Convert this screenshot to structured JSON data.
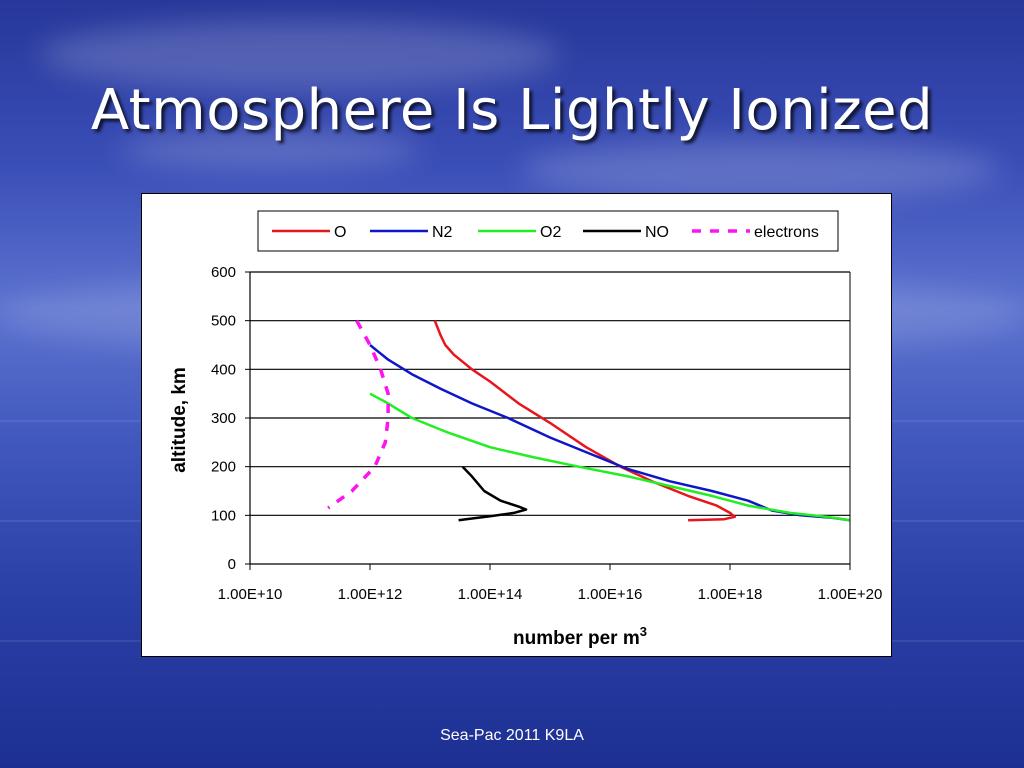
{
  "slide": {
    "title": "Atmosphere Is Lightly Ionized",
    "footer": "Sea-Pac 2011 K9LA"
  },
  "chart_data": {
    "type": "line",
    "x_scale": "log",
    "xlabel": "number per m",
    "xlabel_superscript": "3",
    "ylabel": "altitude, km",
    "xlim": [
      "1.00E+10",
      "1.00E+20"
    ],
    "ylim": [
      0,
      600
    ],
    "x_ticks": [
      "1.00E+10",
      "1.00E+12",
      "1.00E+14",
      "1.00E+16",
      "1.00E+18",
      "1.00E+20"
    ],
    "y_ticks": [
      "0",
      "100",
      "200",
      "300",
      "400",
      "500",
      "600"
    ],
    "grid": "horizontal",
    "legend_position": "top",
    "series": [
      {
        "name": "O",
        "color": "#e8151c",
        "style": "solid",
        "points": [
          [
            "1.2E+13",
            500
          ],
          [
            "1.5E+13",
            470
          ],
          [
            "1.8E+13",
            450
          ],
          [
            "2.5E+13",
            430
          ],
          [
            "5.0E+13",
            400
          ],
          [
            "1.0E+14",
            375
          ],
          [
            "3.0E+14",
            330
          ],
          [
            "1.0E+15",
            290
          ],
          [
            "4.0E+15",
            240
          ],
          [
            "1.5E+16",
            200
          ],
          [
            "5.0E+16",
            170
          ],
          [
            "2.0E+17",
            140
          ],
          [
            "6.0E+17",
            120
          ],
          [
            "1.0E+18",
            105
          ],
          [
            "1.2E+18",
            97
          ],
          [
            "8.0E+17",
            92
          ],
          [
            "2.0E+17",
            90
          ]
        ]
      },
      {
        "name": "N2",
        "color": "#0e16c8",
        "style": "solid",
        "points": [
          [
            "1.0E+12",
            450
          ],
          [
            "2.0E+12",
            420
          ],
          [
            "5.0E+12",
            390
          ],
          [
            "1.5E+13",
            360
          ],
          [
            "5.0E+13",
            330
          ],
          [
            "2.0E+14",
            300
          ],
          [
            "1.0E+15",
            260
          ],
          [
            "5.0E+15",
            225
          ],
          [
            "2.0E+16",
            195
          ],
          [
            "1.0E+17",
            170
          ],
          [
            "5.0E+17",
            150
          ],
          [
            "2.0E+18",
            130
          ],
          [
            "5.0E+18",
            110
          ],
          [
            "1.5E+19",
            100
          ],
          [
            "5.0E+19",
            95
          ],
          [
            "1.0E+20",
            90
          ]
        ]
      },
      {
        "name": "O2",
        "color": "#22ee22",
        "style": "solid",
        "points": [
          [
            "1.0E+12",
            350
          ],
          [
            "2.0E+12",
            330
          ],
          [
            "5.0E+12",
            300
          ],
          [
            "2.0E+13",
            270
          ],
          [
            "1.0E+14",
            240
          ],
          [
            "5.0E+14",
            220
          ],
          [
            "3.0E+15",
            200
          ],
          [
            "2.0E+16",
            180
          ],
          [
            "1.0E+17",
            160
          ],
          [
            "5.0E+17",
            140
          ],
          [
            "2.0E+18",
            120
          ],
          [
            "1.0E+19",
            105
          ],
          [
            "4.0E+19",
            97
          ],
          [
            "1.0E+20",
            90
          ]
        ]
      },
      {
        "name": "NO",
        "color": "#000000",
        "style": "solid",
        "points": [
          [
            "3.5E+13",
            200
          ],
          [
            "5.0E+13",
            180
          ],
          [
            "8.0E+13",
            150
          ],
          [
            "1.5E+14",
            130
          ],
          [
            "3.0E+14",
            118
          ],
          [
            "4.0E+14",
            112
          ],
          [
            "2.5E+14",
            105
          ],
          [
            "1.0E+14",
            98
          ],
          [
            "4.0E+13",
            92
          ],
          [
            "3.0E+13",
            90
          ]
        ]
      },
      {
        "name": "electrons",
        "color": "#ff12f0",
        "style": "dashed",
        "points": [
          [
            "6.0E+11",
            500
          ],
          [
            "1.0E+12",
            450
          ],
          [
            "1.5E+12",
            400
          ],
          [
            "2.0E+12",
            350
          ],
          [
            "2.0E+12",
            300
          ],
          [
            "1.8E+12",
            250
          ],
          [
            "1.2E+12",
            200
          ],
          [
            "5.0E+11",
            150
          ],
          [
            "2.0E+11",
            115
          ]
        ]
      }
    ]
  }
}
